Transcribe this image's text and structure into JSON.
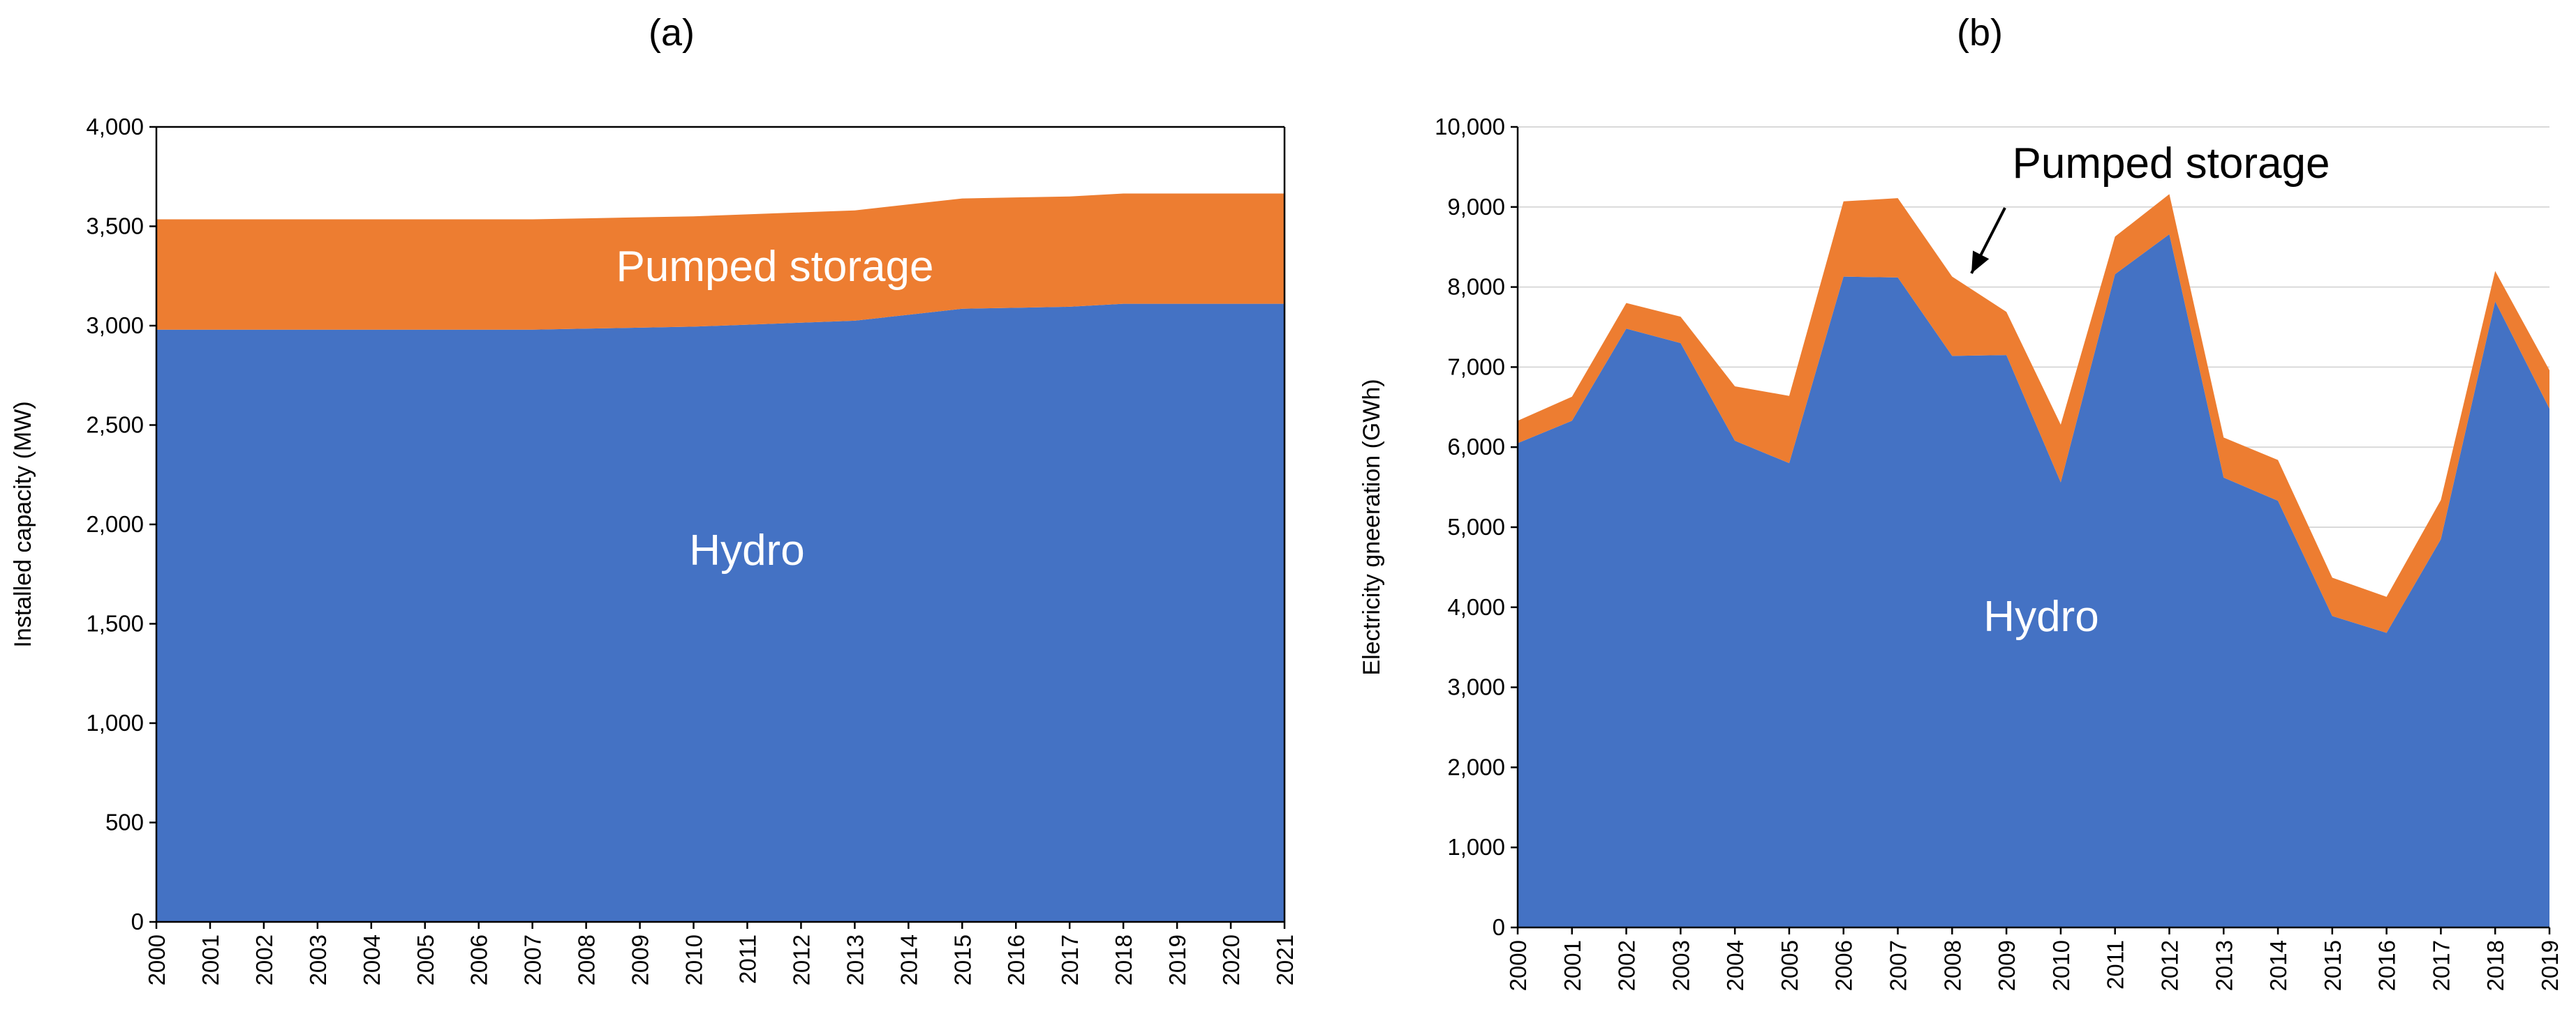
{
  "chart_data": [
    {
      "type": "area",
      "panel_label": "(a)",
      "title": "",
      "xlabel": "",
      "ylabel": "Installed capacity (MW)",
      "ylim": [
        0,
        4000
      ],
      "yticks": [
        0,
        500,
        1000,
        1500,
        2000,
        2500,
        3000,
        3500,
        4000
      ],
      "ytick_labels": [
        "0",
        "500",
        "1,000",
        "1,500",
        "2,000",
        "2,500",
        "3,000",
        "3,500",
        "4,000"
      ],
      "grid": false,
      "stacked": true,
      "x": [
        "2000",
        "2001",
        "2002",
        "2003",
        "2004",
        "2005",
        "2006",
        "2007",
        "2008",
        "2009",
        "2010",
        "2011",
        "2012",
        "2013",
        "2014",
        "2015",
        "2016",
        "2017",
        "2018",
        "2019",
        "2020",
        "2021"
      ],
      "series": [
        {
          "name": "Hydro",
          "color": "#4472c4",
          "values": [
            2980,
            2980,
            2980,
            2980,
            2980,
            2980,
            2980,
            2980,
            2985,
            2990,
            2995,
            3005,
            3015,
            3025,
            3055,
            3085,
            3090,
            3095,
            3110,
            3110,
            3110,
            3110
          ]
        },
        {
          "name": "Pumped storage",
          "color": "#ed7d31",
          "values": [
            555,
            555,
            555,
            555,
            555,
            555,
            555,
            555,
            555,
            555,
            555,
            555,
            555,
            555,
            555,
            555,
            555,
            555,
            555,
            555,
            555,
            555
          ]
        }
      ],
      "annotations": [
        {
          "text": "Pumped storage",
          "series": "Pumped storage"
        },
        {
          "text": "Hydro",
          "series": "Hydro"
        }
      ]
    },
    {
      "type": "area",
      "panel_label": "(b)",
      "title": "",
      "xlabel": "",
      "ylabel": "Electricity gneeration (GWh)",
      "ylim": [
        0,
        10000
      ],
      "yticks": [
        0,
        1000,
        2000,
        3000,
        4000,
        5000,
        6000,
        7000,
        8000,
        9000,
        10000
      ],
      "ytick_labels": [
        "0",
        "1,000",
        "2,000",
        "3,000",
        "4,000",
        "5,000",
        "6,000",
        "7,000",
        "8,000",
        "9,000",
        "10,000"
      ],
      "grid": true,
      "stacked": true,
      "x": [
        "2000",
        "2001",
        "2002",
        "2003",
        "2004",
        "2005",
        "2006",
        "2007",
        "2008",
        "2009",
        "2010",
        "2011",
        "2012",
        "2013",
        "2014",
        "2015",
        "2016",
        "2017",
        "2018",
        "2019"
      ],
      "series": [
        {
          "name": "Hydro",
          "color": "#4472c4",
          "values": [
            6050,
            6330,
            7480,
            7300,
            6080,
            5800,
            8130,
            8120,
            7140,
            7150,
            5560,
            8160,
            8660,
            5620,
            5330,
            3890,
            3680,
            4850,
            7820,
            6480
          ]
        },
        {
          "name": "Pumped storage",
          "color": "#ed7d31",
          "values": [
            280,
            300,
            320,
            330,
            680,
            840,
            940,
            990,
            990,
            540,
            720,
            470,
            500,
            500,
            510,
            480,
            450,
            490,
            380,
            480
          ]
        }
      ],
      "annotations": [
        {
          "text": "Pumped storage",
          "series": "Pumped storage",
          "arrow": true
        },
        {
          "text": "Hydro",
          "series": "Hydro"
        }
      ]
    }
  ]
}
